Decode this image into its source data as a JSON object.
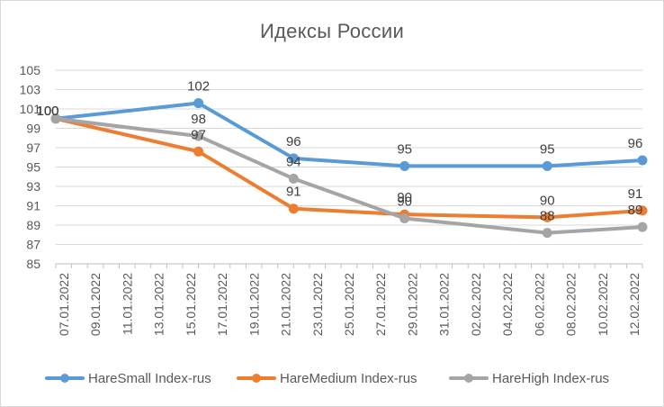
{
  "chart_data": {
    "type": "line",
    "title": "Идексы России",
    "xlabel": "",
    "ylabel": "",
    "ylim": [
      85,
      105
    ],
    "yticks": [
      85,
      87,
      89,
      91,
      93,
      95,
      97,
      99,
      101,
      103,
      105
    ],
    "categories": [
      "07.01.2022",
      "09.01.2022",
      "11.01.2022",
      "13.01.2022",
      "15.01.2022",
      "17.01.2022",
      "19.01.2022",
      "21.01.2022",
      "23.01.2022",
      "25.01.2022",
      "27.01.2022",
      "29.01.2022",
      "31.01.2022",
      "02.02.2022",
      "04.02.2022",
      "06.02.2022",
      "08.02.2022",
      "10.02.2022",
      "12.02.2022"
    ],
    "grid": true,
    "legend": "bottom",
    "series": [
      {
        "name": "HareSmall Index-rus",
        "color": "#5B9BD5",
        "points": [
          {
            "x": "07.01.2022",
            "y": 100,
            "label": "100"
          },
          {
            "x": "16.01.2022",
            "y": 101.6,
            "label": "102"
          },
          {
            "x": "22.01.2022",
            "y": 95.9,
            "label": "96"
          },
          {
            "x": "29.01.2022",
            "y": 95.1,
            "label": "95"
          },
          {
            "x": "07.02.2022",
            "y": 95.1,
            "label": "95"
          },
          {
            "x": "13.02.2022",
            "y": 95.7,
            "label": "96"
          }
        ]
      },
      {
        "name": "HareMedium Index-rus",
        "color": "#ED7D31",
        "points": [
          {
            "x": "07.01.2022",
            "y": 100,
            "label": "100"
          },
          {
            "x": "16.01.2022",
            "y": 96.6,
            "label": "97"
          },
          {
            "x": "22.01.2022",
            "y": 90.7,
            "label": "91"
          },
          {
            "x": "29.01.2022",
            "y": 90.1,
            "label": "90"
          },
          {
            "x": "07.02.2022",
            "y": 89.8,
            "label": "90"
          },
          {
            "x": "13.02.2022",
            "y": 90.5,
            "label": "91"
          }
        ]
      },
      {
        "name": "HareHigh Index-rus",
        "color": "#A5A5A5",
        "points": [
          {
            "x": "07.01.2022",
            "y": 100,
            "label": "100"
          },
          {
            "x": "16.01.2022",
            "y": 98.2,
            "label": "98"
          },
          {
            "x": "22.01.2022",
            "y": 93.8,
            "label": "94"
          },
          {
            "x": "29.01.2022",
            "y": 89.7,
            "label": "90"
          },
          {
            "x": "07.02.2022",
            "y": 88.2,
            "label": "88"
          },
          {
            "x": "13.02.2022",
            "y": 88.8,
            "label": "89"
          }
        ]
      }
    ]
  }
}
